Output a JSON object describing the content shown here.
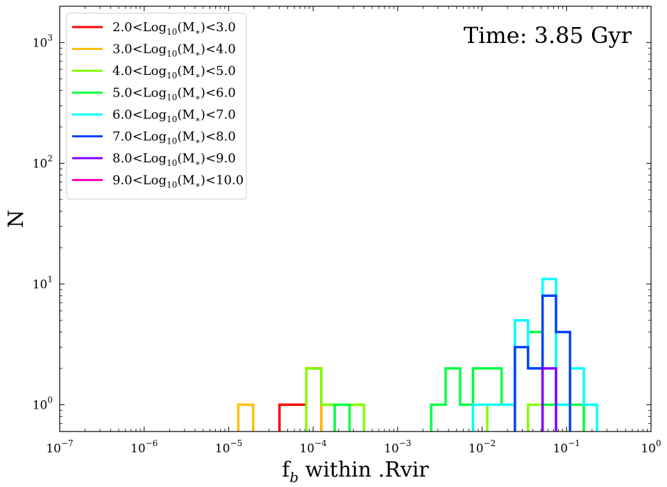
{
  "chart_data": {
    "type": "histogram",
    "xscale": "log",
    "yscale": "log",
    "xlim": [
      1e-07,
      1
    ],
    "ylim": [
      0.6,
      2000
    ],
    "xlabel_main": "f",
    "xlabel_sub": "b",
    "xlabel_rest": " within .Rvir",
    "ylabel": "N",
    "annotation": "Time: 3.85 Gyr",
    "legend_position": "upper-left",
    "x_ticks": [
      {
        "value": 1e-07,
        "base": "10",
        "exp": "−7"
      },
      {
        "value": 1e-06,
        "base": "10",
        "exp": "−6"
      },
      {
        "value": 1e-05,
        "base": "10",
        "exp": "−5"
      },
      {
        "value": 0.0001,
        "base": "10",
        "exp": "−4"
      },
      {
        "value": 0.001,
        "base": "10",
        "exp": "−3"
      },
      {
        "value": 0.01,
        "base": "10",
        "exp": "−2"
      },
      {
        "value": 0.1,
        "base": "10",
        "exp": "−1"
      },
      {
        "value": 1,
        "base": "10",
        "exp": "0"
      }
    ],
    "y_ticks": [
      {
        "value": 1,
        "base": "10",
        "exp": "0"
      },
      {
        "value": 10,
        "base": "10",
        "exp": "1"
      },
      {
        "value": 100,
        "base": "10",
        "exp": "2"
      },
      {
        "value": 1000,
        "base": "10",
        "exp": "3"
      }
    ],
    "series": [
      {
        "name": "2.0<Log10(M*)<3.0",
        "label": {
          "pre": "2.0<Log",
          "sub": "10",
          "mid": "(M",
          "star": "∗",
          "post": ")<3.0"
        },
        "color": "#ff0000",
        "steps": [
          [
            4e-05,
            0.6
          ],
          [
            4e-05,
            1
          ],
          [
            8.3e-05,
            1
          ],
          [
            8.3e-05,
            2
          ],
          [
            0.000125,
            2
          ],
          [
            0.000125,
            0.6
          ]
        ]
      },
      {
        "name": "3.0<Log10(M*)<4.0",
        "label": {
          "pre": "3.0<Log",
          "sub": "10",
          "mid": "(M",
          "star": "∗",
          "post": ")<4.0"
        },
        "color": "#ffbf00",
        "steps": [
          [
            1.3e-05,
            0.6
          ],
          [
            1.3e-05,
            1
          ],
          [
            1.95e-05,
            1
          ],
          [
            1.95e-05,
            0.6
          ]
        ]
      },
      {
        "name": "3.0<Log10(M*)<4.0 b",
        "color": "#ffbf00",
        "steps": [
          [
            0.000125,
            0.6
          ],
          [
            0.000125,
            1
          ],
          [
            0.000125,
            0.6
          ]
        ]
      },
      {
        "name": "4.0<Log10(M*)<5.0",
        "label": {
          "pre": "4.0<Log",
          "sub": "10",
          "mid": "(M",
          "star": "∗",
          "post": ")<5.0"
        },
        "color": "#80ff00",
        "steps": [
          [
            8.3e-05,
            0.6
          ],
          [
            8.3e-05,
            2
          ],
          [
            0.000125,
            2
          ],
          [
            0.000125,
            1
          ],
          [
            0.00027,
            1
          ],
          [
            0.00027,
            1
          ],
          [
            0.0004,
            1
          ],
          [
            0.0004,
            0.6
          ]
        ]
      },
      {
        "name": "4.0<Log10(M*)<5.0 b",
        "color": "#80ff00",
        "steps": [
          [
            0.0115,
            0.6
          ],
          [
            0.0115,
            1
          ],
          [
            0.0115,
            0.6
          ]
        ]
      },
      {
        "name": "4.0<Log10(M*)<5.0 c",
        "color": "#80ff00",
        "steps": [
          [
            0.035,
            0.6
          ],
          [
            0.035,
            1
          ],
          [
            0.052,
            1
          ],
          [
            0.052,
            0.6
          ]
        ]
      },
      {
        "name": "5.0<Log10(M*)<6.0",
        "label": {
          "pre": "5.0<Log",
          "sub": "10",
          "mid": "(M",
          "star": "∗",
          "post": ")<6.0"
        },
        "color": "#00ff40",
        "steps": [
          [
            0.00018,
            0.6
          ],
          [
            0.00018,
            1
          ],
          [
            0.00027,
            1
          ],
          [
            0.00027,
            0.6
          ]
        ]
      },
      {
        "name": "5.0<Log10(M*)<6.0 b",
        "color": "#00ff40",
        "steps": [
          [
            0.0025,
            0.6
          ],
          [
            0.0025,
            1
          ],
          [
            0.0037,
            1
          ],
          [
            0.0037,
            2
          ],
          [
            0.0055,
            2
          ],
          [
            0.0055,
            1
          ],
          [
            0.0078,
            1
          ],
          [
            0.0078,
            2
          ],
          [
            0.017,
            2
          ],
          [
            0.017,
            1
          ],
          [
            0.0245,
            1
          ],
          [
            0.0245,
            5
          ],
          [
            0.035,
            5
          ],
          [
            0.035,
            4
          ],
          [
            0.052,
            4
          ],
          [
            0.052,
            1
          ],
          [
            0.16,
            1
          ],
          [
            0.16,
            0.6
          ]
        ]
      },
      {
        "name": "6.0<Log10(M*)<7.0",
        "label": {
          "pre": "6.0<Log",
          "sub": "10",
          "mid": "(M",
          "star": "∗",
          "post": ")<7.0"
        },
        "color": "#00ffff",
        "steps": [
          [
            0.0078,
            0.6
          ],
          [
            0.0078,
            1
          ],
          [
            0.0245,
            1
          ],
          [
            0.0245,
            5
          ],
          [
            0.035,
            5
          ],
          [
            0.035,
            2
          ],
          [
            0.052,
            2
          ],
          [
            0.052,
            11
          ],
          [
            0.075,
            11
          ],
          [
            0.075,
            1
          ],
          [
            0.11,
            1
          ],
          [
            0.11,
            2
          ],
          [
            0.16,
            2
          ],
          [
            0.16,
            1
          ],
          [
            0.23,
            1
          ],
          [
            0.23,
            0.6
          ]
        ]
      },
      {
        "name": "7.0<Log10(M*)<8.0",
        "label": {
          "pre": "7.0<Log",
          "sub": "10",
          "mid": "(M",
          "star": "∗",
          "post": ")<8.0"
        },
        "color": "#0040ff",
        "steps": [
          [
            0.0245,
            0.6
          ],
          [
            0.0245,
            3
          ],
          [
            0.035,
            3
          ],
          [
            0.035,
            2
          ],
          [
            0.052,
            2
          ],
          [
            0.052,
            8
          ],
          [
            0.075,
            8
          ],
          [
            0.075,
            4
          ],
          [
            0.11,
            4
          ],
          [
            0.11,
            0.6
          ]
        ]
      },
      {
        "name": "8.0<Log10(M*)<9.0",
        "label": {
          "pre": "8.0<Log",
          "sub": "10",
          "mid": "(M",
          "star": "∗",
          "post": ")<9.0"
        },
        "color": "#8000ff",
        "steps": [
          [
            0.052,
            0.6
          ],
          [
            0.052,
            2
          ],
          [
            0.075,
            2
          ],
          [
            0.075,
            0.6
          ]
        ]
      },
      {
        "name": "9.0<Log10(M*)<10.0",
        "label": {
          "pre": "9.0<Log",
          "sub": "10",
          "mid": "(M",
          "star": "∗",
          "post": ")<10.0"
        },
        "color": "#ff00bf",
        "steps": []
      }
    ]
  }
}
